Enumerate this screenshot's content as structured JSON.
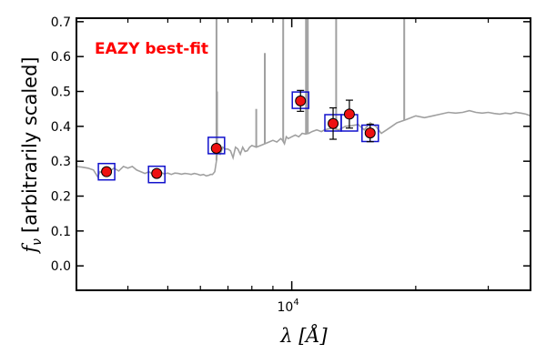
{
  "chart_data": {
    "type": "scatter",
    "title": "",
    "xlabel": "λ [Å]",
    "ylabel": "[arbitrarily scaled]",
    "ylabel_symbol": "f",
    "ylabel_subscript": "ν",
    "xscale": "log",
    "xlim": [
      3000,
      38000
    ],
    "ylim": [
      -0.07,
      0.71
    ],
    "y_ticks": [
      "0.0",
      "0.1",
      "0.2",
      "0.3",
      "0.4",
      "0.5",
      "0.6",
      "0.7"
    ],
    "y_tick_values": [
      0.0,
      0.1,
      0.2,
      0.3,
      0.4,
      0.5,
      0.6,
      0.7
    ],
    "x_tick_base": "10",
    "x_tick_exp": "4",
    "x_tick_value": 10000,
    "annotation": {
      "text": "EAZY best-fit",
      "color": "#ff0000"
    },
    "colors": {
      "template": "#a0a0a0",
      "model_box": "#1111cc",
      "data_point": "#ee1111",
      "errorbar": "#000000"
    },
    "series": [
      {
        "name": "EAZY best-fit",
        "kind": "template-line",
        "x": [
          3000,
          3100,
          3200,
          3300,
          3380,
          3420,
          3500,
          3600,
          3700,
          3800,
          3900,
          4000,
          4100,
          4200,
          4300,
          4400,
          4500,
          4600,
          4700,
          4800,
          4900,
          5000,
          5100,
          5200,
          5300,
          5400,
          5500,
          5600,
          5700,
          5800,
          5900,
          6000,
          6100,
          6200,
          6300,
          6350,
          6420,
          6500,
          6560,
          6600,
          6700,
          6800,
          6900,
          7000,
          7100,
          7200,
          7300,
          7400,
          7500,
          7600,
          7700,
          7800,
          7900,
          8000,
          8200,
          8400,
          8600,
          8800,
          9000,
          9200,
          9400,
          9500,
          9600,
          9700,
          9800,
          10000,
          10200,
          10400,
          10500,
          10600,
          10800,
          11000,
          11200,
          11500,
          11800,
          12000,
          12500,
          13000,
          13500,
          14000,
          14500,
          15000,
          15500,
          16000,
          16500,
          17000,
          17500,
          18000,
          19000,
          20000,
          21000,
          22000,
          23000,
          24000,
          25000,
          26000,
          27000,
          28000,
          29000,
          30000,
          31000,
          32000,
          33000,
          34000,
          35000,
          36000,
          37000,
          38000
        ],
        "y": [
          0.285,
          0.283,
          0.28,
          0.275,
          0.255,
          0.27,
          0.265,
          0.27,
          0.28,
          0.272,
          0.285,
          0.28,
          0.285,
          0.275,
          0.27,
          0.265,
          0.27,
          0.262,
          0.266,
          0.268,
          0.264,
          0.266,
          0.262,
          0.266,
          0.265,
          0.263,
          0.265,
          0.264,
          0.262,
          0.265,
          0.263,
          0.26,
          0.262,
          0.258,
          0.26,
          0.262,
          0.262,
          0.27,
          0.3,
          0.33,
          0.32,
          0.34,
          0.335,
          0.335,
          0.33,
          0.31,
          0.34,
          0.335,
          0.32,
          0.34,
          0.328,
          0.33,
          0.34,
          0.345,
          0.34,
          0.345,
          0.35,
          0.355,
          0.36,
          0.355,
          0.365,
          0.36,
          0.35,
          0.37,
          0.365,
          0.37,
          0.375,
          0.37,
          0.375,
          0.38,
          0.378,
          0.38,
          0.385,
          0.39,
          0.385,
          0.39,
          0.395,
          0.39,
          0.4,
          0.402,
          0.405,
          0.39,
          0.41,
          0.4,
          0.38,
          0.39,
          0.4,
          0.41,
          0.42,
          0.43,
          0.425,
          0.43,
          0.435,
          0.44,
          0.438,
          0.44,
          0.445,
          0.44,
          0.438,
          0.44,
          0.437,
          0.435,
          0.438,
          0.436,
          0.44,
          0.438,
          0.435,
          0.43
        ]
      },
      {
        "name": "emission lines",
        "kind": "lines",
        "x": [
          6563,
          6583,
          8200,
          8600,
          9532,
          10830,
          10938,
          12818,
          18751
        ],
        "peak": [
          0.72,
          0.5,
          0.45,
          0.61,
          0.72,
          0.72,
          0.72,
          0.72,
          0.72
        ]
      },
      {
        "name": "model photometry",
        "kind": "boxes",
        "x": [
          3550,
          4700,
          6560,
          10500,
          12600,
          13800,
          15500
        ],
        "y": [
          0.27,
          0.262,
          0.345,
          0.475,
          0.41,
          0.41,
          0.38
        ]
      },
      {
        "name": "observed photometry",
        "kind": "points",
        "x": [
          3550,
          4700,
          6560,
          10500,
          12600,
          13800,
          15500
        ],
        "y": [
          0.27,
          0.265,
          0.337,
          0.473,
          0.408,
          0.435,
          0.381
        ],
        "err": [
          0.008,
          0.008,
          0.01,
          0.03,
          0.045,
          0.04,
          0.025
        ]
      }
    ]
  }
}
